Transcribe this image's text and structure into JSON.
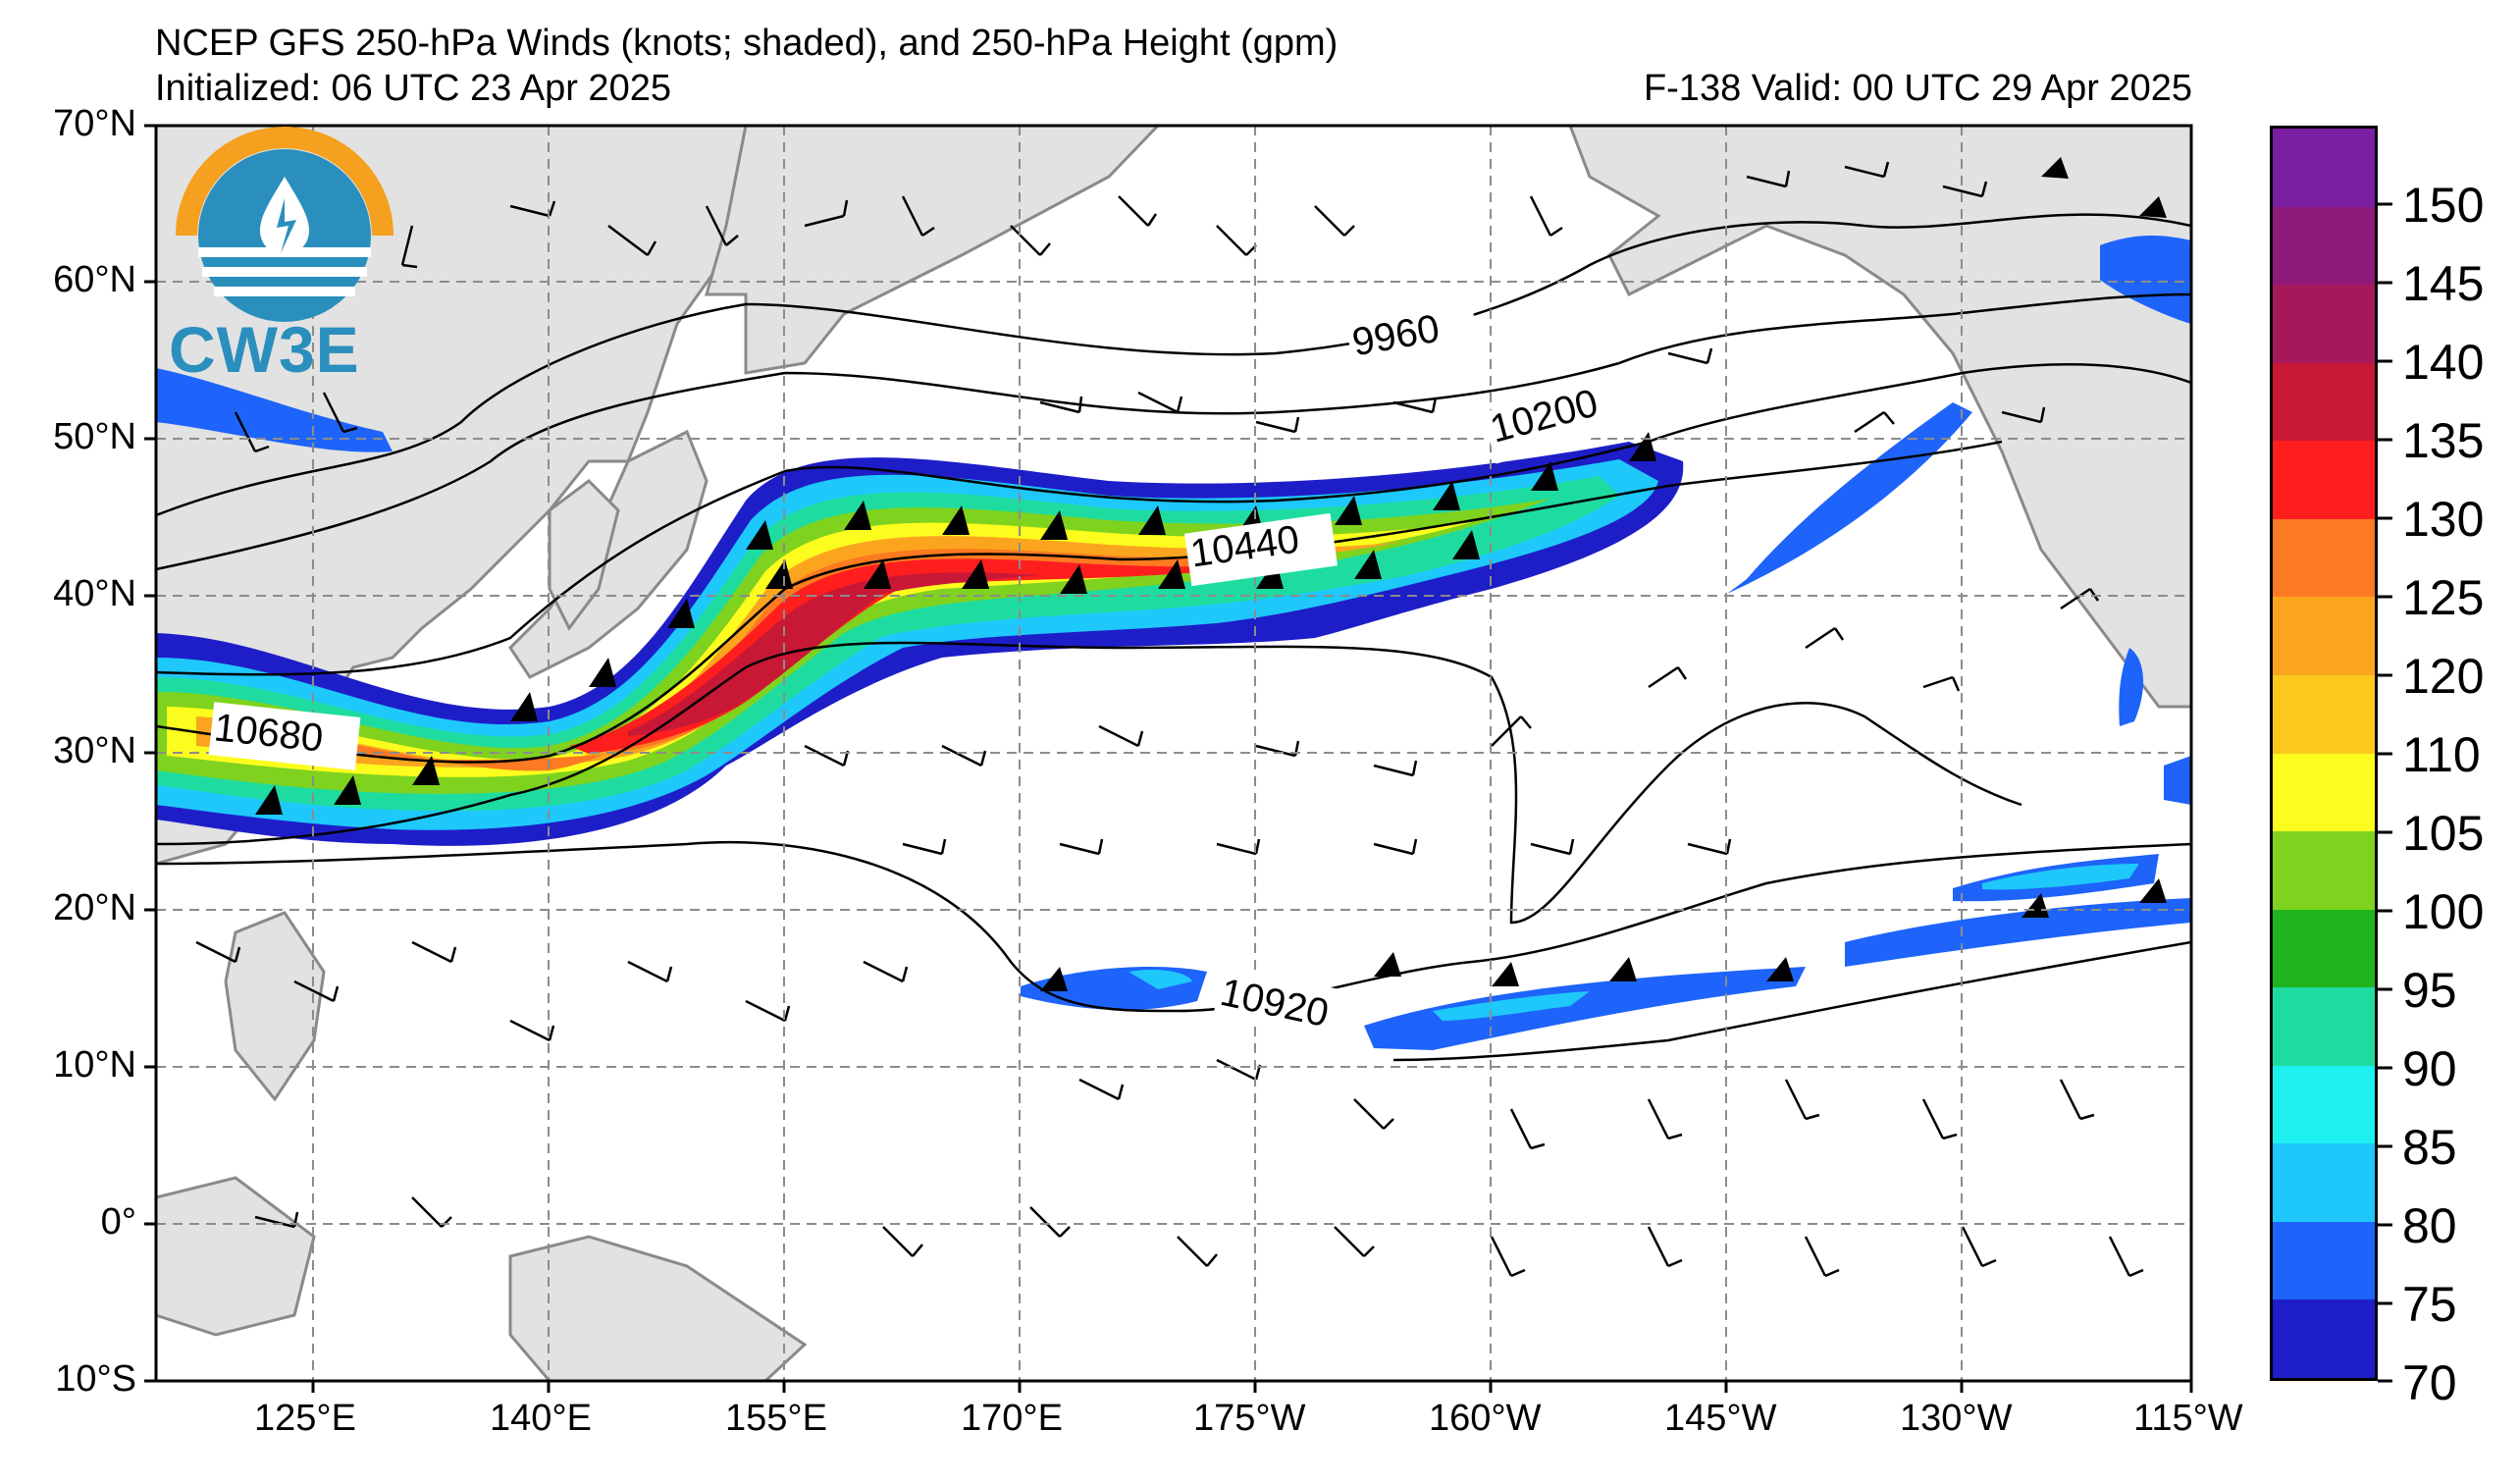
{
  "header": {
    "title": "NCEP GFS 250-hPa Winds (knots; shaded), and 250-hPa Height (gpm)",
    "initialized": "Initialized: 06 UTC 23 Apr 2025",
    "valid": "F-138  Valid: 00 UTC 29 Apr 2025"
  },
  "logo": {
    "text": "CW3E"
  },
  "map": {
    "lat_labels": [
      "70°N",
      "60°N",
      "50°N",
      "40°N",
      "30°N",
      "20°N",
      "10°N",
      "0°",
      "10°S"
    ],
    "lon_labels": [
      "125°E",
      "140°E",
      "155°E",
      "170°E",
      "175°W",
      "160°W",
      "145°W",
      "130°W",
      "115°W"
    ],
    "contour_labels": [
      "9960",
      "10200",
      "10440",
      "10680",
      "10920"
    ],
    "colors": {
      "land": "#e2e2e2",
      "coast": "#8a8a8a",
      "grid": "#8c8c8c",
      "contour": "#000000"
    }
  },
  "colorbar": {
    "labels": [
      "150",
      "145",
      "140",
      "135",
      "130",
      "125",
      "120",
      "110",
      "105",
      "100",
      "95",
      "90",
      "85",
      "80",
      "75",
      "70"
    ],
    "colors": [
      "#7a1fa2",
      "#8e1a7a",
      "#a5195a",
      "#c81836",
      "#ff1e1e",
      "#fc7a21",
      "#fba51f",
      "#fcc81e",
      "#fcfc1e",
      "#7fd21e",
      "#1eb41e",
      "#1edca0",
      "#1ef0f0",
      "#1ec8fa",
      "#1e64fa",
      "#1e1ec8"
    ]
  }
}
